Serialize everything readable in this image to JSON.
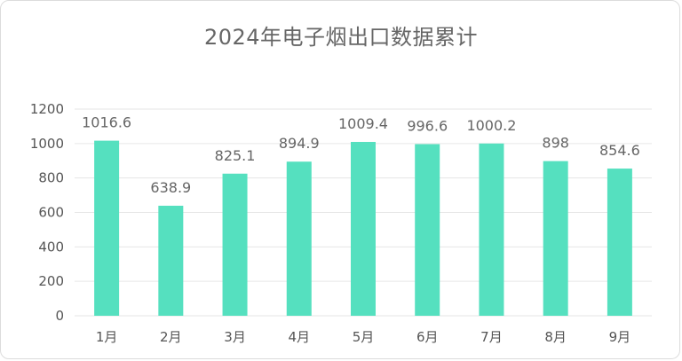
{
  "chart_data": {
    "type": "bar",
    "title": "2024年电子烟出口数据累计",
    "categories": [
      "1月",
      "2月",
      "3月",
      "4月",
      "5月",
      "6月",
      "7月",
      "8月",
      "9月"
    ],
    "values": [
      1016.6,
      638.9,
      825.1,
      894.9,
      1009.4,
      996.6,
      1000.2,
      898,
      854.6
    ],
    "value_labels": [
      "1016.6",
      "638.9",
      "825.1",
      "894.9",
      "1009.4",
      "996.6",
      "1000.2",
      "898",
      "854.6"
    ],
    "ylim": [
      0,
      1200
    ],
    "yticks": [
      0,
      200,
      400,
      600,
      800,
      1000,
      1200
    ],
    "grid": true,
    "legend": "none",
    "bar_color": "#55e0bf",
    "grid_color": "#e6e6e6"
  }
}
